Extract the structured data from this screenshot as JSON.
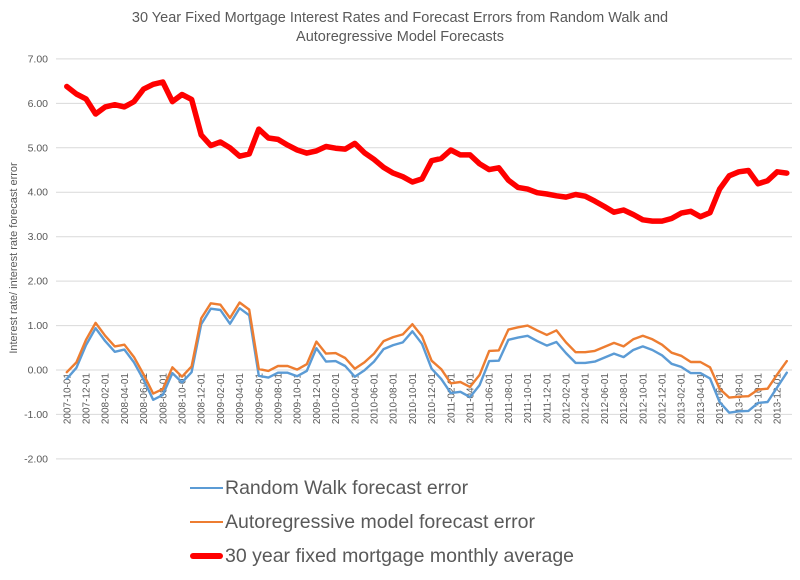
{
  "chart_data": {
    "type": "line",
    "title": "30 Year Fixed Mortgage Interest Rates and Forecast Errors from Random Walk and Autoregressive Model Forecasts",
    "title_lines": [
      "30 Year Fixed Mortgage Interest Rates and Forecast Errors from Random Walk and",
      "Autoregressive Model Forecasts"
    ],
    "xlabel": "",
    "ylabel": "Interest rate/ interest rate forecast error",
    "ylim": [
      -2.0,
      7.0
    ],
    "grid": "horizontal",
    "legend_position": "bottom-left",
    "y_tick_labels": [
      "7.00",
      "6.00",
      "5.00",
      "4.00",
      "3.00",
      "2.00",
      "1.00",
      "0.00",
      "-1.00",
      "-2.00"
    ],
    "y_tick_values": [
      7,
      6,
      5,
      4,
      3,
      2,
      1,
      0,
      -1,
      -2
    ],
    "x_tick_step": 2,
    "x_tick_labels": [
      "2007-10-01",
      "2007-12-01",
      "2008-02-01",
      "2008-04-01",
      "2008-06-01",
      "2008-08-01",
      "2008-10-01",
      "2008-12-01",
      "2009-02-01",
      "2009-04-01",
      "2009-06-01",
      "2009-08-01",
      "2009-10-01",
      "2009-12-01",
      "2010-02-01",
      "2010-04-01",
      "2010-06-01",
      "2010-08-01",
      "2010-10-01",
      "2010-12-01",
      "2011-02-01",
      "2011-04-01",
      "2011-06-01",
      "2011-08-01",
      "2011-10-01",
      "2011-12-01",
      "2012-02-01",
      "2012-04-01",
      "2012-06-01",
      "2012-08-01",
      "2012-10-01",
      "2012-12-01",
      "2013-02-01",
      "2013-04-01",
      "2013-06-01",
      "2013-08-01",
      "2013-10-01",
      "2013-12-01"
    ],
    "x": [
      "2007-10-01",
      "2007-11-01",
      "2007-12-01",
      "2008-01-01",
      "2008-02-01",
      "2008-03-01",
      "2008-04-01",
      "2008-05-01",
      "2008-06-01",
      "2008-07-01",
      "2008-08-01",
      "2008-09-01",
      "2008-10-01",
      "2008-11-01",
      "2008-12-01",
      "2009-01-01",
      "2009-02-01",
      "2009-03-01",
      "2009-04-01",
      "2009-05-01",
      "2009-06-01",
      "2009-07-01",
      "2009-08-01",
      "2009-09-01",
      "2009-10-01",
      "2009-11-01",
      "2009-12-01",
      "2010-01-01",
      "2010-02-01",
      "2010-03-01",
      "2010-04-01",
      "2010-05-01",
      "2010-06-01",
      "2010-07-01",
      "2010-08-01",
      "2010-09-01",
      "2010-10-01",
      "2010-11-01",
      "2010-12-01",
      "2011-01-01",
      "2011-02-01",
      "2011-03-01",
      "2011-04-01",
      "2011-05-01",
      "2011-06-01",
      "2011-07-01",
      "2011-08-01",
      "2011-09-01",
      "2011-10-01",
      "2011-11-01",
      "2011-12-01",
      "2012-01-01",
      "2012-02-01",
      "2012-03-01",
      "2012-04-01",
      "2012-05-01",
      "2012-06-01",
      "2012-07-01",
      "2012-08-01",
      "2012-09-01",
      "2012-10-01",
      "2012-11-01",
      "2012-12-01",
      "2013-01-01",
      "2013-02-01",
      "2013-03-01",
      "2013-04-01",
      "2013-05-01",
      "2013-06-01",
      "2013-07-01",
      "2013-08-01",
      "2013-09-01",
      "2013-10-01",
      "2013-11-01",
      "2013-12-01",
      "2014-01-01"
    ],
    "series": [
      {
        "name": "Random Walk forecast error",
        "color": "#5B9BD5",
        "width": 2.4,
        "values": [
          -0.2,
          0.05,
          0.56,
          0.94,
          0.65,
          0.41,
          0.46,
          0.17,
          -0.22,
          -0.67,
          -0.56,
          -0.07,
          -0.28,
          -0.05,
          1.03,
          1.38,
          1.35,
          1.04,
          1.39,
          1.23,
          -0.13,
          -0.17,
          -0.06,
          -0.06,
          -0.14,
          -0.02,
          0.49,
          0.19,
          0.2,
          0.09,
          -0.15,
          -0.01,
          0.19,
          0.47,
          0.56,
          0.62,
          0.87,
          0.59,
          0.03,
          -0.2,
          -0.52,
          -0.49,
          -0.61,
          -0.34,
          0.2,
          0.21,
          0.68,
          0.73,
          0.77,
          0.65,
          0.55,
          0.63,
          0.38,
          0.16,
          0.16,
          0.19,
          0.28,
          0.37,
          0.29,
          0.45,
          0.53,
          0.45,
          0.33,
          0.14,
          0.07,
          -0.07,
          -0.07,
          -0.19,
          -0.72,
          -0.96,
          -0.93,
          -0.92,
          -0.74,
          -0.72,
          -0.39,
          -0.06
        ]
      },
      {
        "name": "Autoregressive model forecast error",
        "color": "#ED7D31",
        "width": 2.4,
        "values": [
          -0.05,
          0.17,
          0.68,
          1.06,
          0.77,
          0.53,
          0.57,
          0.29,
          -0.1,
          -0.53,
          -0.43,
          0.06,
          -0.15,
          0.08,
          1.16,
          1.5,
          1.47,
          1.17,
          1.52,
          1.36,
          0.02,
          -0.02,
          0.09,
          0.09,
          0.01,
          0.13,
          0.64,
          0.37,
          0.38,
          0.27,
          0.03,
          0.17,
          0.37,
          0.65,
          0.74,
          0.8,
          1.03,
          0.76,
          0.21,
          0.02,
          -0.3,
          -0.27,
          -0.38,
          -0.11,
          0.43,
          0.44,
          0.91,
          0.96,
          1.0,
          0.89,
          0.79,
          0.89,
          0.62,
          0.4,
          0.4,
          0.43,
          0.52,
          0.61,
          0.53,
          0.69,
          0.77,
          0.69,
          0.57,
          0.39,
          0.32,
          0.18,
          0.18,
          0.06,
          -0.42,
          -0.62,
          -0.6,
          -0.59,
          -0.44,
          -0.42,
          -0.1,
          0.2
        ]
      },
      {
        "name": "30 year fixed mortgage monthly average",
        "color": "#FF0000",
        "width": 5.5,
        "values": [
          6.38,
          6.21,
          6.1,
          5.76,
          5.92,
          5.97,
          5.92,
          6.04,
          6.32,
          6.43,
          6.48,
          6.04,
          6.2,
          6.09,
          5.29,
          5.05,
          5.13,
          5.0,
          4.81,
          4.86,
          5.42,
          5.22,
          5.19,
          5.06,
          4.95,
          4.88,
          4.93,
          5.03,
          4.99,
          4.97,
          5.1,
          4.89,
          4.74,
          4.56,
          4.43,
          4.35,
          4.23,
          4.3,
          4.71,
          4.76,
          4.95,
          4.84,
          4.84,
          4.64,
          4.51,
          4.55,
          4.27,
          4.11,
          4.07,
          3.99,
          3.96,
          3.92,
          3.89,
          3.95,
          3.91,
          3.8,
          3.68,
          3.55,
          3.6,
          3.5,
          3.38,
          3.35,
          3.35,
          3.41,
          3.53,
          3.57,
          3.45,
          3.54,
          4.07,
          4.37,
          4.46,
          4.49,
          4.19,
          4.26,
          4.46,
          4.43
        ]
      }
    ],
    "colors": {
      "background": "#FFFFFF",
      "gridline": "#D9D9D9",
      "axis_text": "#595959",
      "title_text": "#595959",
      "legend_text": "#595959"
    }
  }
}
